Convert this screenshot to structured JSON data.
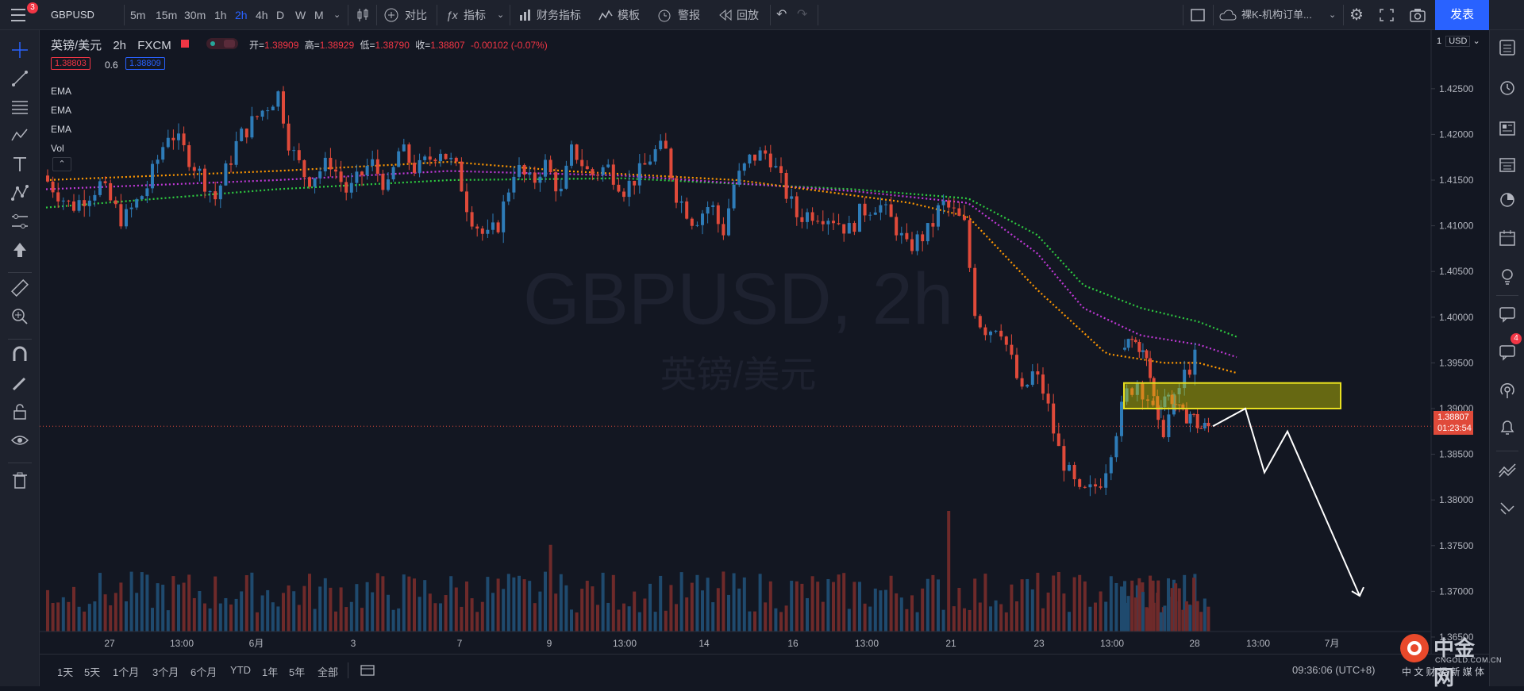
{
  "toolbar": {
    "menu_badge": "3",
    "symbol": "GBPUSD",
    "intervals": [
      "5m",
      "15m",
      "30m",
      "1h",
      "2h",
      "4h",
      "D",
      "W",
      "M"
    ],
    "active_interval": "2h",
    "compare": "对比",
    "indicators": "指标",
    "financials": "财务指标",
    "templates": "模板",
    "alerts": "警报",
    "replay": "回放",
    "layout_name": "裸K-机构订单...",
    "publish": "发表"
  },
  "legend": {
    "title": "英镑/美元",
    "interval": "2h",
    "exchange": "FXCM",
    "open_label": "开=",
    "open": "1.38909",
    "high_label": "高=",
    "high": "1.38929",
    "low_label": "低=",
    "low": "1.38790",
    "close_label": "收=",
    "close": "1.38807",
    "change": "-0.00102 (-0.07%)",
    "bid": "1.38803",
    "spread": "0.6",
    "ask": "1.38809",
    "studies": [
      "EMA",
      "EMA",
      "EMA",
      "Vol"
    ]
  },
  "watermark": {
    "symbol": "GBPUSD, 2h",
    "name": "英镑/美元"
  },
  "price_axis": {
    "scale_label": "1",
    "currency": "USD",
    "ticks": [
      "1.42500",
      "1.42000",
      "1.41500",
      "1.41000",
      "1.40500",
      "1.40000",
      "1.39500",
      "1.39000",
      "1.38500",
      "1.38000",
      "1.37500",
      "1.37000",
      "1.36500"
    ],
    "last_price": "1.38807",
    "countdown": "01:23:54"
  },
  "time_axis": {
    "ticks": [
      "27",
      "13:00",
      "6月",
      "3",
      "7",
      "9",
      "13:00",
      "14",
      "16",
      "13:00",
      "21",
      "23",
      "13:00",
      "28",
      "13:00",
      "7月"
    ]
  },
  "bottom": {
    "ranges": [
      "1天",
      "5天",
      "1个月",
      "3个月",
      "6个月",
      "YTD",
      "1年",
      "5年",
      "全部"
    ],
    "clock": "09:36:06 (UTC+8)",
    "watermark_logo": "中金网",
    "watermark_url": "CNGOLD.COM.CN",
    "watermark_text": "中 文 财 经 新 媒 体"
  },
  "rightbar": {
    "notification_badge": "4"
  },
  "colors": {
    "up": "#2e7cb8",
    "down": "#e04a3a",
    "ema_fast": "#ff9800",
    "ema_mid": "#c239d9",
    "ema_slow": "#2ecc40",
    "accent": "#2962ff"
  },
  "chart_data": {
    "type": "candlestick",
    "symbol": "GBPUSD",
    "interval": "2h",
    "ylim": [
      1.363,
      1.4295
    ],
    "ohlc_path": [
      [
        0,
        1.4155
      ],
      [
        0.025,
        1.412
      ],
      [
        0.05,
        1.4145
      ],
      [
        0.07,
        1.4105
      ],
      [
        0.09,
        1.414
      ],
      [
        0.11,
        1.4205
      ],
      [
        0.13,
        1.417
      ],
      [
        0.15,
        1.413
      ],
      [
        0.17,
        1.4195
      ],
      [
        0.19,
        1.4225
      ],
      [
        0.205,
        1.4245
      ],
      [
        0.215,
        1.4185
      ],
      [
        0.23,
        1.415
      ],
      [
        0.25,
        1.417
      ],
      [
        0.265,
        1.4135
      ],
      [
        0.285,
        1.417
      ],
      [
        0.3,
        1.414
      ],
      [
        0.31,
        1.4185
      ],
      [
        0.325,
        1.416
      ],
      [
        0.345,
        1.4185
      ],
      [
        0.36,
        1.416
      ],
      [
        0.37,
        1.4115
      ],
      [
        0.385,
        1.4085
      ],
      [
        0.395,
        1.41
      ],
      [
        0.41,
        1.4165
      ],
      [
        0.425,
        1.4145
      ],
      [
        0.435,
        1.417
      ],
      [
        0.45,
        1.4135
      ],
      [
        0.46,
        1.4185
      ],
      [
        0.475,
        1.4155
      ],
      [
        0.49,
        1.4165
      ],
      [
        0.505,
        1.414
      ],
      [
        0.52,
        1.416
      ],
      [
        0.53,
        1.418
      ],
      [
        0.54,
        1.4185
      ],
      [
        0.55,
        1.4135
      ],
      [
        0.565,
        1.4105
      ],
      [
        0.58,
        1.4125
      ],
      [
        0.59,
        1.409
      ],
      [
        0.6,
        1.4145
      ],
      [
        0.615,
        1.4175
      ],
      [
        0.63,
        1.418
      ],
      [
        0.64,
        1.415
      ],
      [
        0.655,
        1.411
      ],
      [
        0.67,
        1.4115
      ],
      [
        0.685,
        1.411
      ],
      [
        0.7,
        1.4095
      ],
      [
        0.71,
        1.4115
      ],
      [
        0.725,
        1.4125
      ],
      [
        0.74,
        1.41
      ],
      [
        0.75,
        1.4075
      ],
      [
        0.76,
        1.4085
      ],
      [
        0.77,
        1.4095
      ],
      [
        0.78,
        1.4125
      ],
      [
        0.79,
        1.4115
      ],
      [
        0.8,
        1.41
      ],
      [
        0.81,
        1.4
      ],
      [
        0.82,
        1.3985
      ],
      [
        0.83,
        1.3995
      ],
      [
        0.84,
        1.3955
      ],
      [
        0.85,
        1.3915
      ],
      [
        0.86,
        1.394
      ],
      [
        0.87,
        1.3915
      ],
      [
        0.88,
        1.386
      ],
      [
        0.89,
        1.383
      ],
      [
        0.9,
        1.3805
      ],
      [
        0.91,
        1.381
      ],
      [
        0.92,
        1.3825
      ],
      [
        0.93,
        1.387
      ],
      [
        0.94,
        1.3915
      ],
      [
        0.95,
        1.393
      ],
      [
        0.96,
        1.391
      ],
      [
        0.97,
        1.387
      ],
      [
        0.98,
        1.39
      ],
      [
        0.99,
        1.3935
      ],
      [
        1.0,
        1.3955
      ]
    ],
    "ohlc_path_tail": [
      [
        0,
        1.3955
      ],
      [
        0.1,
        1.3975
      ],
      [
        0.2,
        1.397
      ],
      [
        0.3,
        1.395
      ],
      [
        0.4,
        1.39
      ],
      [
        0.5,
        1.3915
      ],
      [
        0.6,
        1.391
      ],
      [
        0.7,
        1.389
      ],
      [
        0.8,
        1.3895
      ],
      [
        0.9,
        1.3878
      ],
      [
        1.0,
        1.38807
      ]
    ],
    "ema_fast": [
      [
        0,
        1.415
      ],
      [
        0.2,
        1.416
      ],
      [
        0.35,
        1.417
      ],
      [
        0.45,
        1.416
      ],
      [
        0.6,
        1.415
      ],
      [
        0.75,
        1.4125
      ],
      [
        0.8,
        1.411
      ],
      [
        0.86,
        1.403
      ],
      [
        0.92,
        1.396
      ],
      [
        0.97,
        1.395
      ],
      [
        1.0,
        1.395
      ],
      [
        1.06,
        1.393
      ]
    ],
    "ema_mid": [
      [
        0,
        1.414
      ],
      [
        0.2,
        1.415
      ],
      [
        0.35,
        1.416
      ],
      [
        0.5,
        1.4155
      ],
      [
        0.7,
        1.4138
      ],
      [
        0.8,
        1.4125
      ],
      [
        0.86,
        1.407
      ],
      [
        0.9,
        1.401
      ],
      [
        0.95,
        1.398
      ],
      [
        1.0,
        1.397
      ],
      [
        1.06,
        1.3945
      ]
    ],
    "ema_slow": [
      [
        0,
        1.412
      ],
      [
        0.2,
        1.414
      ],
      [
        0.35,
        1.415
      ],
      [
        0.5,
        1.4152
      ],
      [
        0.7,
        1.414
      ],
      [
        0.8,
        1.413
      ],
      [
        0.86,
        1.409
      ],
      [
        0.9,
        1.4035
      ],
      [
        0.95,
        1.401
      ],
      [
        1.0,
        1.3995
      ],
      [
        1.06,
        1.3965
      ]
    ],
    "zone": {
      "top": 1.3928,
      "bottom": 1.39
    },
    "projection": [
      [
        1.38807,
        0
      ],
      [
        1.39,
        1
      ],
      [
        1.383,
        2
      ],
      [
        1.3875,
        3
      ],
      [
        1.3695,
        5
      ]
    ]
  }
}
